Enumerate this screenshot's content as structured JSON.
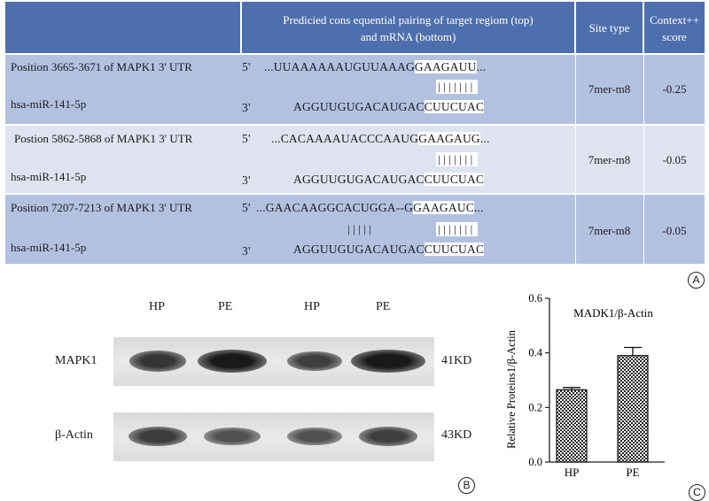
{
  "panel_a": {
    "label": "A",
    "headers": {
      "pairing_line1": "Predicied cons equential pairing of target regiom (top)",
      "pairing_line2": "and mRNA (bottom)",
      "site_type": "Site type",
      "context_line1": "Context++",
      "context_line2": "score"
    },
    "rows": [
      {
        "position": "Position 3665-3671 of MAPK1 3' UTR",
        "mirna": "hsa-miR-141-5p",
        "top_prime": "5'",
        "top_prefix": "...UUAAAAAAUGUUAAAG",
        "top_seed": "GAAGAUU",
        "top_suffix": "...",
        "pair_marks": "|||||||",
        "bottom_prime": "3'",
        "bottom_prefix": "AGGUUGUGACAUGAC",
        "bottom_seed": "CUUCUAC",
        "site_type": "7mer-m8",
        "score": "-0.25"
      },
      {
        "position": "Postion 5862-5868 of MAPK1 3' UTR",
        "mirna": "hsa-miR-141-5p",
        "top_prime": "5'",
        "top_prefix": "...CACAAAAUACCCAAUG",
        "top_seed": "GAAGAUG",
        "top_suffix": "...",
        "pair_marks": "|||||||",
        "bottom_prime": "3'",
        "bottom_prefix": "AGGUUGUGACAUGAC",
        "bottom_seed": "CUUCUAC",
        "site_type": "7mer-m8",
        "score": "-0.05"
      },
      {
        "position": "Position 7207-7213 of MAPK1 3' UTR",
        "mirna": "hsa-miR-141-5p",
        "top_prime": "5'",
        "top_prefix": "...GAACAAGGCACUGGA--G",
        "top_seed": "GAAGAUC",
        "top_suffix": "...",
        "pair_marks_left": "|||||",
        "pair_marks": "|||||||",
        "bottom_prime": "3'",
        "bottom_prefix": "AGGUUGUGACAUGAC",
        "bottom_seed": "CUUCUAC",
        "site_type": "7mer-m8",
        "score": "-0.05"
      }
    ],
    "colors": {
      "header": "#4e6fae",
      "row_a": "#b3c1e1",
      "row_b": "#dfe3f0"
    }
  },
  "panel_b": {
    "label": "B",
    "lanes": [
      "HP",
      "PE",
      "HP",
      "PE"
    ],
    "rows": [
      {
        "name": "MAPK1",
        "size": "41KD",
        "intensity": [
          0.78,
          1.0,
          0.7,
          1.0
        ]
      },
      {
        "name": "β-Actin",
        "size": "43KD",
        "intensity": [
          0.72,
          0.55,
          0.55,
          0.7
        ]
      }
    ]
  },
  "panel_c": {
    "label": "C"
  },
  "chart_data": {
    "type": "bar",
    "title": "MADK1/β-Actin",
    "ylabel": "Relative Proteins1/β-Actin",
    "xlabel": "",
    "categories": [
      "HP",
      "PE"
    ],
    "values": [
      0.265,
      0.39
    ],
    "errors": [
      0.008,
      0.03
    ],
    "ylim": [
      0.0,
      0.6
    ],
    "yticks": [
      "0.0",
      "0.2",
      "0.4",
      "0.6"
    ],
    "grid": false,
    "fill": "checkered"
  }
}
